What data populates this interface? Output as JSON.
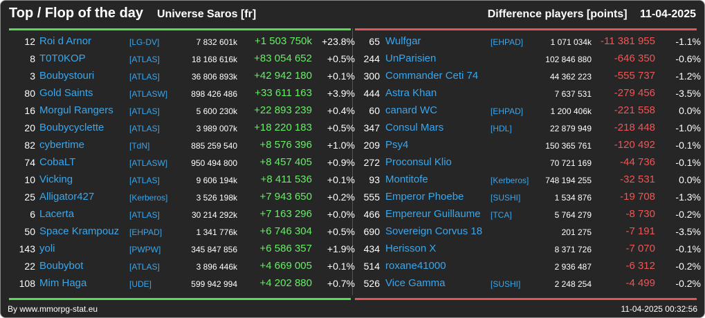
{
  "header": {
    "title": "Top / Flop of the day",
    "universe": "Universe Saros [fr]",
    "metric": "Difference players [points]",
    "date": "11-04-2025"
  },
  "colors": {
    "top": "#55dd55",
    "flop": "#e55555",
    "link": "#39a7ee"
  },
  "top": [
    {
      "rank": "12",
      "name": "Roi d Arnor",
      "tag": "[LG-DV]",
      "points": "7 832 601k",
      "diff": "+1 503 750k",
      "pct": "+23.8%"
    },
    {
      "rank": "8",
      "name": "T0T0KOP",
      "tag": "[ATLAS]",
      "points": "18 168 616k",
      "diff": "+83 054 652",
      "pct": "+0.5%"
    },
    {
      "rank": "3",
      "name": "Boubystouri",
      "tag": "[ATLAS]",
      "points": "36 806 893k",
      "diff": "+42 942 180",
      "pct": "+0.1%"
    },
    {
      "rank": "80",
      "name": "Gold Saints",
      "tag": "[ATLASW]",
      "points": "898 426 486",
      "diff": "+33 611 163",
      "pct": "+3.9%"
    },
    {
      "rank": "16",
      "name": "Morgul Rangers",
      "tag": "[ATLAS]",
      "points": "5 600 230k",
      "diff": "+22 893 239",
      "pct": "+0.4%"
    },
    {
      "rank": "20",
      "name": "Boubycyclette",
      "tag": "[ATLAS]",
      "points": "3 989 007k",
      "diff": "+18 220 183",
      "pct": "+0.5%"
    },
    {
      "rank": "82",
      "name": "cybertime",
      "tag": "[TdN]",
      "points": "885 259 540",
      "diff": "+8 576 396",
      "pct": "+1.0%"
    },
    {
      "rank": "74",
      "name": "CobaLT",
      "tag": "[ATLASW]",
      "points": "950 494 800",
      "diff": "+8 457 405",
      "pct": "+0.9%"
    },
    {
      "rank": "10",
      "name": "Vicking",
      "tag": "[ATLAS]",
      "points": "9 606 194k",
      "diff": "+8 411 536",
      "pct": "+0.1%"
    },
    {
      "rank": "25",
      "name": "Alligator427",
      "tag": "[Kerberos]",
      "points": "3 526 198k",
      "diff": "+7 943 650",
      "pct": "+0.2%"
    },
    {
      "rank": "6",
      "name": "Lacerta",
      "tag": "[ATLAS]",
      "points": "30 214 292k",
      "diff": "+7 163 296",
      "pct": "+0.0%"
    },
    {
      "rank": "50",
      "name": "Space Krampouz",
      "tag": "[EHPAD]",
      "points": "1 341 776k",
      "diff": "+6 746 304",
      "pct": "+0.5%"
    },
    {
      "rank": "143",
      "name": "yoli",
      "tag": "[PWPW]",
      "points": "345 847 856",
      "diff": "+6 586 357",
      "pct": "+1.9%"
    },
    {
      "rank": "22",
      "name": "Boubybot",
      "tag": "[ATLAS]",
      "points": "3 896 446k",
      "diff": "+4 669 005",
      "pct": "+0.1%"
    },
    {
      "rank": "108",
      "name": "Mim Haga",
      "tag": "[UDE]",
      "points": "599 942 994",
      "diff": "+4 202 880",
      "pct": "+0.7%"
    }
  ],
  "flop": [
    {
      "rank": "65",
      "name": "Wulfgar",
      "tag": "[EHPAD]",
      "points": "1 071 034k",
      "diff": "-11 381 955",
      "pct": "-1.1%"
    },
    {
      "rank": "244",
      "name": "UnParisien",
      "tag": "",
      "points": "102 846 880",
      "diff": "-646 350",
      "pct": "-0.6%"
    },
    {
      "rank": "300",
      "name": "Commander Ceti 74",
      "tag": "",
      "points": "44 362 223",
      "diff": "-555 737",
      "pct": "-1.2%"
    },
    {
      "rank": "444",
      "name": "Astra Khan",
      "tag": "",
      "points": "7 637 531",
      "diff": "-279 456",
      "pct": "-3.5%"
    },
    {
      "rank": "60",
      "name": "canard WC",
      "tag": "[EHPAD]",
      "points": "1 200 406k",
      "diff": "-221 558",
      "pct": "0.0%"
    },
    {
      "rank": "347",
      "name": "Consul Mars",
      "tag": "[HDL]",
      "points": "22 879 949",
      "diff": "-218 448",
      "pct": "-1.0%"
    },
    {
      "rank": "209",
      "name": "Psy4",
      "tag": "",
      "points": "150 365 761",
      "diff": "-120 492",
      "pct": "-0.1%"
    },
    {
      "rank": "272",
      "name": "Proconsul Klio",
      "tag": "",
      "points": "70 721 169",
      "diff": "-44 736",
      "pct": "-0.1%"
    },
    {
      "rank": "93",
      "name": "Montitofe",
      "tag": "[Kerberos]",
      "points": "748 194 255",
      "diff": "-32 531",
      "pct": "0.0%"
    },
    {
      "rank": "555",
      "name": "Emperor Phoebe",
      "tag": "[SUSHI]",
      "points": "1 534 876",
      "diff": "-19 708",
      "pct": "-1.3%"
    },
    {
      "rank": "466",
      "name": "Empereur Guillaume",
      "tag": "[TCA]",
      "points": "5 764 279",
      "diff": "-8 730",
      "pct": "-0.2%"
    },
    {
      "rank": "690",
      "name": "Sovereign Corvus 18",
      "tag": "",
      "points": "201 275",
      "diff": "-7 191",
      "pct": "-3.5%"
    },
    {
      "rank": "434",
      "name": "Herisson X",
      "tag": "",
      "points": "8 371 726",
      "diff": "-7 070",
      "pct": "-0.1%"
    },
    {
      "rank": "514",
      "name": "roxane41000",
      "tag": "",
      "points": "2 936 487",
      "diff": "-6 312",
      "pct": "-0.2%"
    },
    {
      "rank": "526",
      "name": "Vice Gamma",
      "tag": "[SUSHI]",
      "points": "2 248 254",
      "diff": "-4 499",
      "pct": "-0.2%"
    }
  ],
  "footer": {
    "source": "By www.mmorpg-stat.eu",
    "timestamp": "11-04-2025 00:32:56"
  }
}
